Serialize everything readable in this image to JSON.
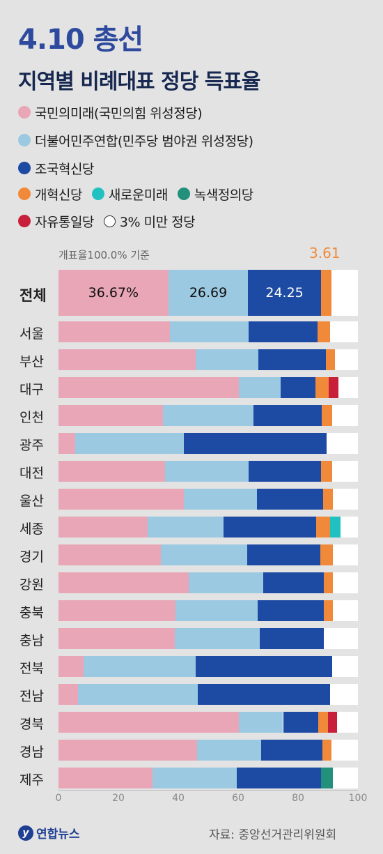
{
  "header": {
    "title": "4.10 총선",
    "subtitle": "지역별 비례대표 정당 득표율"
  },
  "legend": [
    {
      "label": "국민의미래(국민의힘 위성정당)",
      "color": "#e8a6b6"
    },
    {
      "label": "더불어민주연합(민주당 범야권 위성정당)",
      "color": "#9cc9e2"
    },
    {
      "label": "조국혁신당",
      "color": "#1d4aa3"
    },
    {
      "label": "개혁신당",
      "color": "#f08a3a"
    },
    {
      "label": "새로운미래",
      "color": "#22c1c1"
    },
    {
      "label": "녹색정의당",
      "color": "#22907a"
    },
    {
      "label": "자유통일당",
      "color": "#c8203a"
    },
    {
      "label": "3% 미만 정당",
      "color": "#ffffff"
    }
  ],
  "note": "개표율100.0% 기준",
  "source": "자료: 중앙선거관리위원회",
  "logo": "연합뉴스",
  "chart_data": {
    "type": "bar",
    "orientation": "horizontal",
    "stacked": true,
    "xlim": [
      0,
      100
    ],
    "x_ticks": [
      "0",
      "20",
      "40",
      "60",
      "80",
      "100"
    ],
    "categories": [
      "전체",
      "서울",
      "부산",
      "대구",
      "인천",
      "광주",
      "대전",
      "울산",
      "세종",
      "경기",
      "강원",
      "충북",
      "충남",
      "전북",
      "전남",
      "경북",
      "경남",
      "제주"
    ],
    "series": [
      {
        "name": "국민의미래(국민의힘 위성정당)",
        "color": "#e8a6b6",
        "values": [
          36.67,
          37.3,
          45.9,
          60.2,
          34.9,
          5.6,
          35.6,
          41.9,
          29.8,
          34.2,
          43.6,
          39.0,
          38.9,
          8.3,
          6.5,
          60.2,
          46.2,
          31.3
        ]
      },
      {
        "name": "더불어민주연합(민주당 범야권 위성정당)",
        "color": "#9cc9e2",
        "values": [
          26.69,
          26.2,
          20.9,
          14.0,
          30.2,
          36.3,
          27.8,
          24.3,
          25.3,
          28.9,
          24.8,
          27.6,
          28.4,
          37.6,
          40.1,
          14.8,
          21.5,
          28.3
        ]
      },
      {
        "name": "조국혁신당",
        "color": "#1d4aa3",
        "values": [
          24.25,
          23.0,
          22.5,
          11.6,
          22.9,
          47.7,
          24.2,
          22.2,
          30.9,
          24.4,
          20.1,
          21.9,
          21.3,
          45.5,
          44.0,
          11.7,
          20.4,
          28.0
        ]
      },
      {
        "name": "개혁신당",
        "color": "#f08a3a",
        "values": [
          3.61,
          4.3,
          3.0,
          4.5,
          3.4,
          0,
          3.7,
          3.3,
          4.7,
          4.1,
          3.1,
          3.1,
          0,
          0,
          0,
          3.4,
          3.1,
          0
        ]
      },
      {
        "name": "새로운미래",
        "color": "#22c1c1",
        "values": [
          0,
          0,
          0,
          0,
          0,
          0,
          0,
          0,
          3.6,
          0,
          0,
          0,
          0,
          0,
          0,
          0,
          0,
          0
        ]
      },
      {
        "name": "녹색정의당",
        "color": "#22907a",
        "values": [
          0,
          0,
          0,
          0,
          0,
          0,
          0,
          0,
          0,
          0,
          0,
          0,
          0,
          0,
          0,
          0,
          0,
          4.1
        ]
      },
      {
        "name": "자유통일당",
        "color": "#c8203a",
        "values": [
          0,
          0,
          0,
          3.1,
          0,
          0,
          0,
          0,
          0,
          0,
          0,
          0,
          0,
          0,
          0,
          3.0,
          0,
          0
        ]
      }
    ],
    "data_labels": {
      "국민의미래": "36.67%",
      "더불어민주연합": "26.69",
      "조국혁신당": "24.25",
      "개혁신당": "3.61"
    }
  }
}
